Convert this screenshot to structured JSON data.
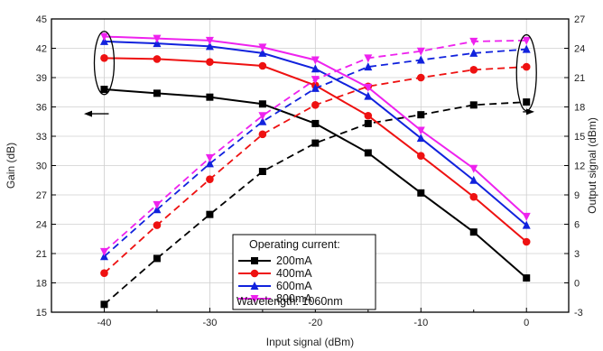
{
  "chart_data": {
    "type": "line",
    "title": "",
    "xlabel": "Input signal (dBm)",
    "ylabel_left": "Gain (dB)",
    "ylabel_right": "Output signal (dBm)",
    "x": [
      -40,
      -35,
      -30,
      -25,
      -20,
      -15,
      -10,
      -5,
      0
    ],
    "xlim": [
      -45,
      4
    ],
    "xticks": [
      -40,
      -30,
      -20,
      -10,
      0
    ],
    "ylim_left": [
      15,
      45
    ],
    "yticks_left": [
      15,
      18,
      21,
      24,
      27,
      30,
      33,
      36,
      39,
      42,
      45
    ],
    "ylim_right": [
      -3,
      27
    ],
    "yticks_right": [
      -3,
      0,
      3,
      6,
      9,
      12,
      15,
      18,
      21,
      24,
      27
    ],
    "grid": true,
    "legend": {
      "position": "bottom-center",
      "title": "Operating current:",
      "footer": "Wavelength: 1060nm"
    },
    "series": [
      {
        "name": "200mA",
        "color": "#000000",
        "marker": "square",
        "gain": [
          37.8,
          37.4,
          37.0,
          36.3,
          34.3,
          31.3,
          27.2,
          23.2,
          18.5
        ],
        "output": [
          -2.2,
          2.5,
          7.0,
          11.4,
          14.3,
          16.3,
          17.2,
          18.2,
          18.5
        ]
      },
      {
        "name": "400mA",
        "color": "#ee1111",
        "marker": "circle",
        "gain": [
          41.0,
          40.9,
          40.6,
          40.2,
          38.2,
          35.1,
          31.0,
          26.8,
          22.2
        ],
        "output": [
          1.0,
          5.9,
          10.6,
          15.2,
          18.2,
          20.1,
          21.0,
          21.8,
          22.1
        ]
      },
      {
        "name": "600mA",
        "color": "#1122dd",
        "marker": "triangle",
        "gain": [
          42.7,
          42.5,
          42.2,
          41.5,
          39.9,
          37.1,
          32.8,
          28.5,
          23.9
        ],
        "output": [
          2.7,
          7.5,
          12.2,
          16.5,
          19.9,
          22.1,
          22.8,
          23.5,
          23.9
        ]
      },
      {
        "name": "800mA",
        "color": "#ee22ee",
        "marker": "triangle-down",
        "gain": [
          43.2,
          43.0,
          42.8,
          42.1,
          40.8,
          38.0,
          33.6,
          29.7,
          24.8
        ],
        "output": [
          3.2,
          8.0,
          12.8,
          17.1,
          20.8,
          23.0,
          23.7,
          24.7,
          24.8
        ]
      }
    ]
  }
}
